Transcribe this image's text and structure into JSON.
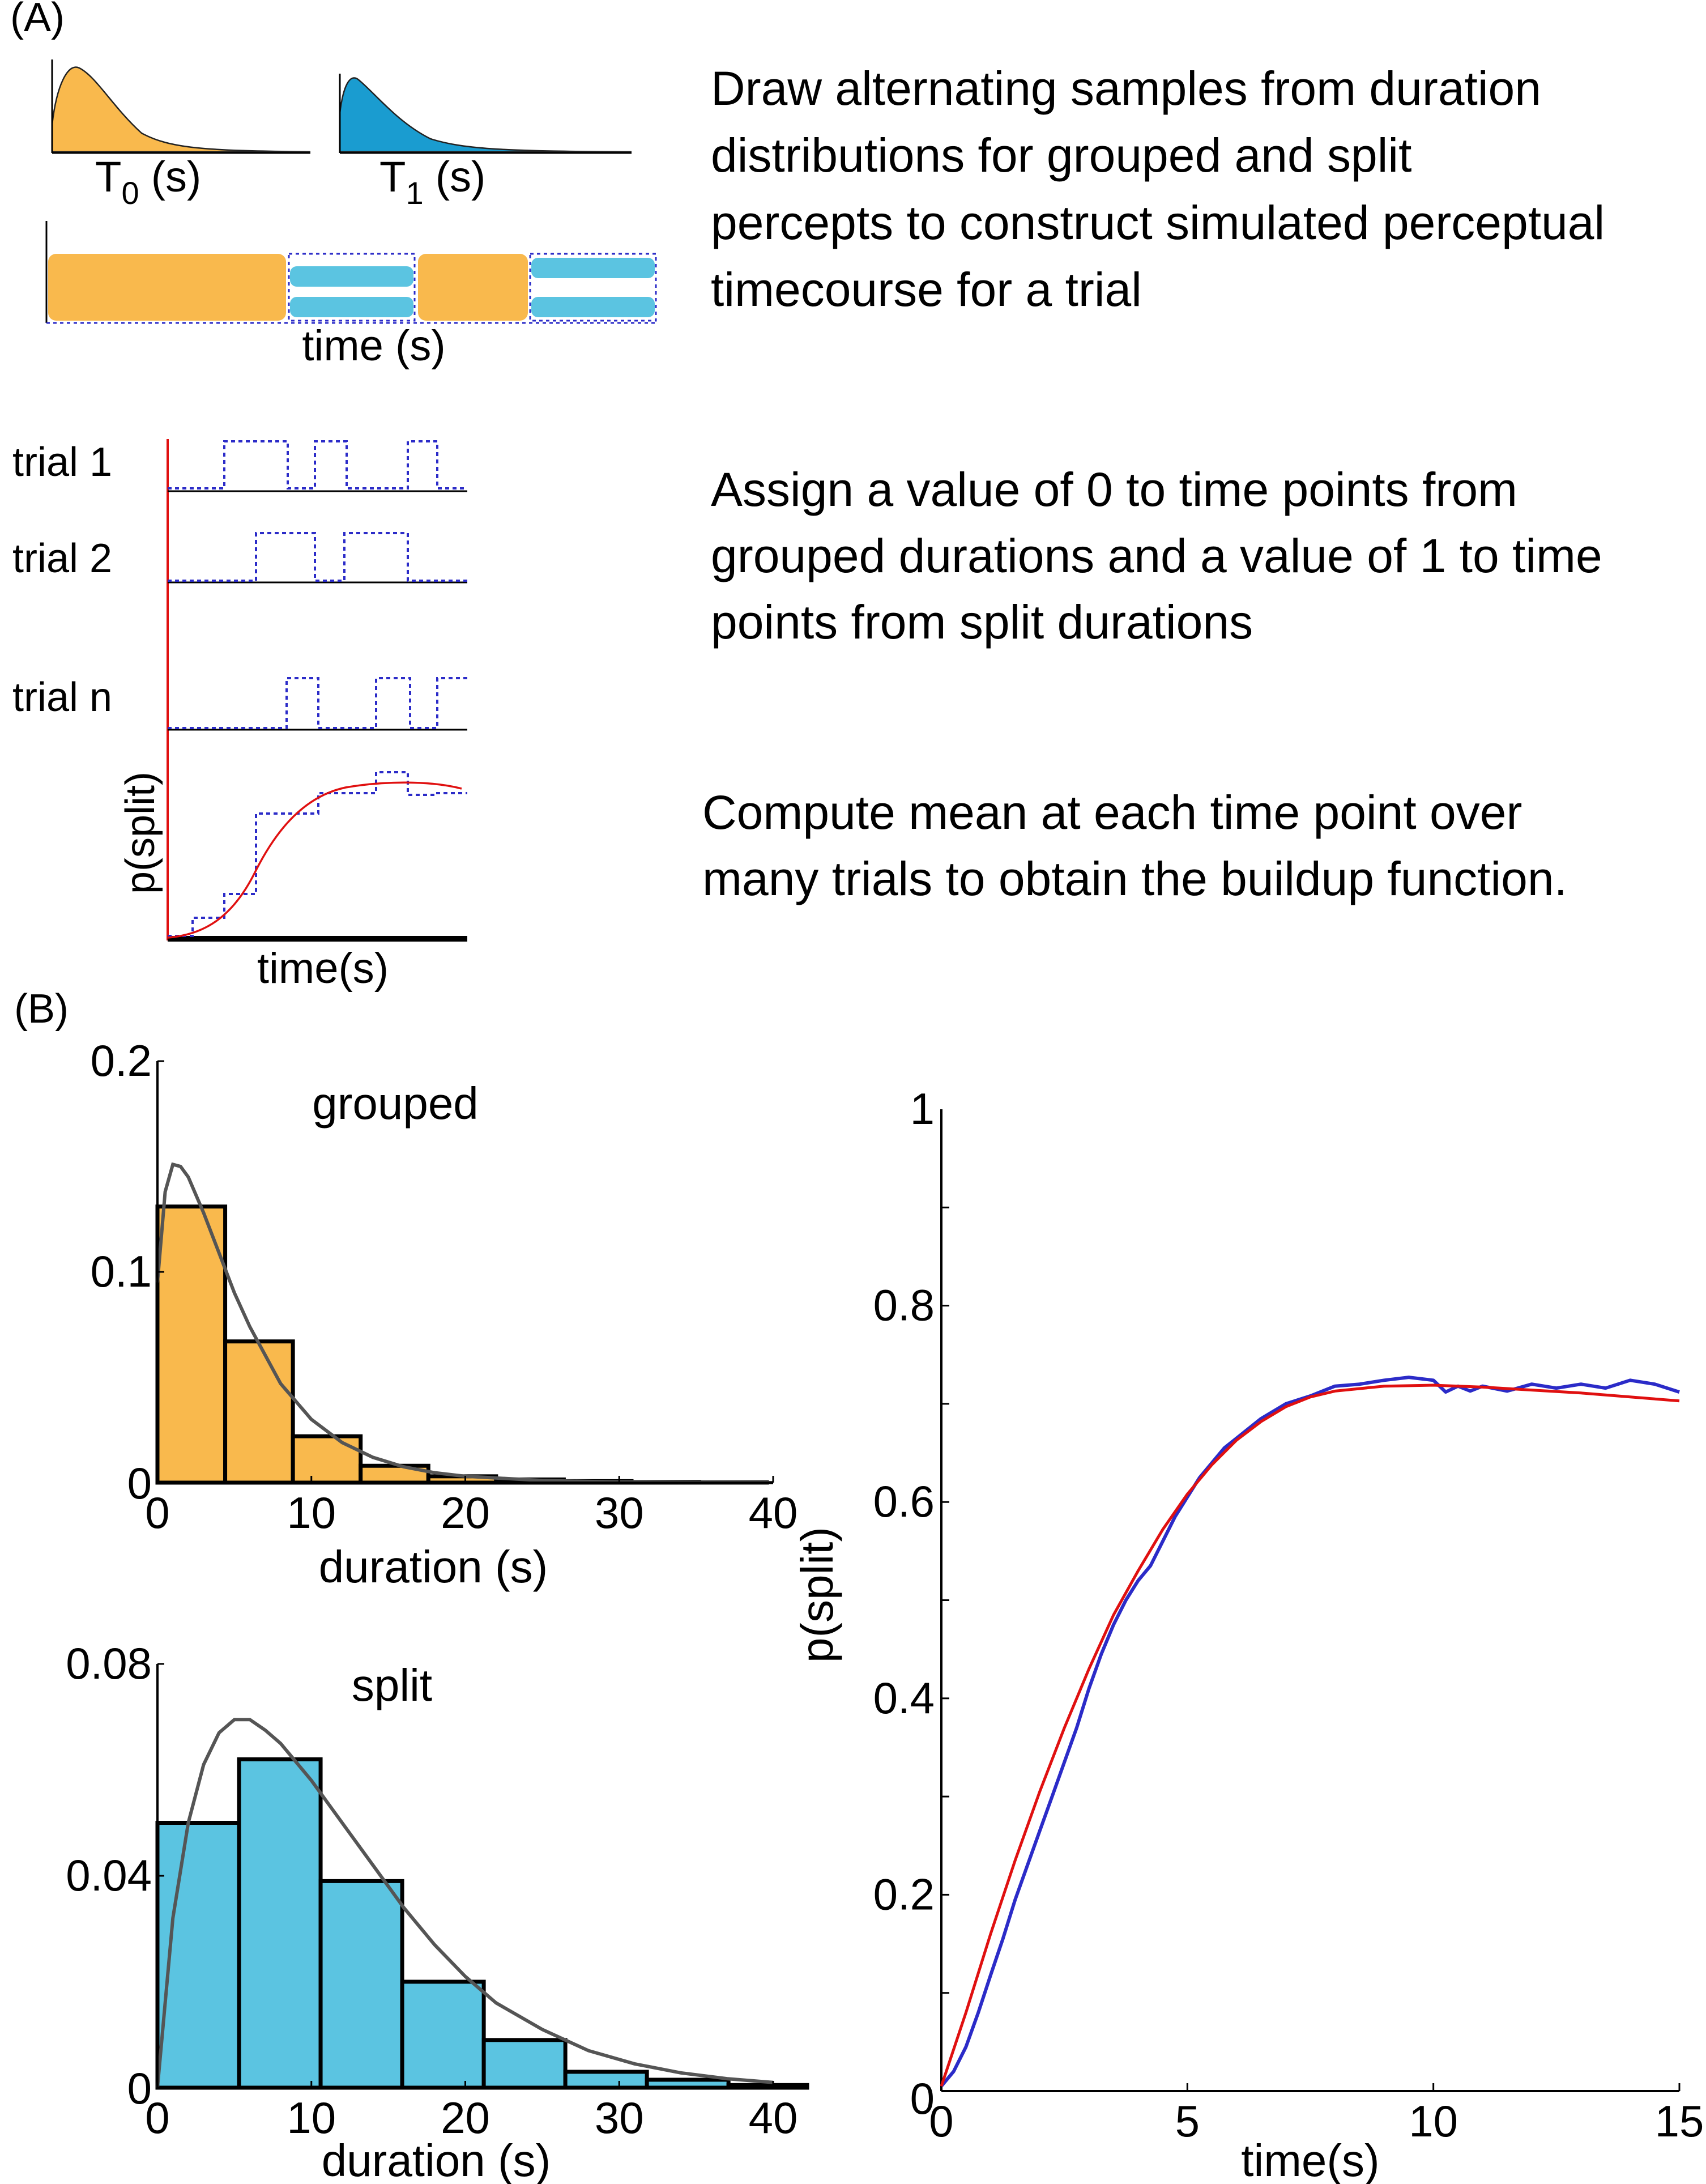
{
  "panel_a": {
    "label": "(A)",
    "dist_labels": {
      "t0_base": "T",
      "t0_sub": "0",
      "t0_unit": " (s)",
      "t1_base": "T",
      "t1_sub": "1",
      "t1_unit": " (s)"
    },
    "timecourse_xlabel": "time (s)",
    "trial_labels": [
      "trial 1",
      "trial 2",
      "trial n"
    ],
    "buildup_ylabel": "p(split)",
    "buildup_xlabel": "time(s)",
    "steps": [
      {
        "lines": [
          "Draw alternating samples from duration",
          "distributions for grouped and split",
          "percepts to construct simulated perceptual",
          "timecourse for a trial"
        ]
      },
      {
        "lines": [
          "Assign a value of 0 to time points from",
          "grouped durations and a value of 1 to time",
          "points from split durations"
        ]
      },
      {
        "lines": [
          "Compute mean at each time point over",
          "many trials to obtain the buildup function."
        ]
      }
    ],
    "colors": {
      "grouped": "#F9B94D",
      "split": "#5BC4E1",
      "split_dark": "#1A9CD0",
      "trace": "#2B2BC8",
      "fit": "#E01010"
    }
  },
  "panel_b": {
    "label": "(B)"
  },
  "chart_data": [
    {
      "type": "bar",
      "title": "grouped",
      "xlabel": "duration (s)",
      "ylabel": "",
      "xlim": [
        0,
        40
      ],
      "ylim": [
        0,
        0.2
      ],
      "xticks": [
        "0",
        "10",
        "20",
        "30",
        "40"
      ],
      "yticks": [
        "0",
        "0.1",
        "0.2"
      ],
      "bin_edges": [
        0,
        4.4,
        8.8,
        13.2,
        17.6,
        22.0,
        26.4,
        30.8,
        35.2,
        39.6
      ],
      "values": [
        0.131,
        0.067,
        0.022,
        0.008,
        0.003,
        0.0015,
        0.0007,
        0.0003,
        0.0001
      ],
      "fit_curve": {
        "x": [
          0,
          0.5,
          1,
          1.5,
          2,
          3,
          4,
          5,
          6,
          8,
          10,
          12,
          14,
          16,
          18,
          20,
          25,
          30,
          35,
          40
        ],
        "y": [
          0.095,
          0.138,
          0.151,
          0.15,
          0.145,
          0.128,
          0.109,
          0.09,
          0.074,
          0.047,
          0.03,
          0.019,
          0.012,
          0.0075,
          0.0047,
          0.003,
          0.001,
          0.0003,
          0.0001,
          0
        ]
      },
      "colors": {
        "bar": "#F9B94D",
        "curve": "#555555"
      }
    },
    {
      "type": "bar",
      "title": "split",
      "xlabel": "duration (s)",
      "ylabel": "",
      "xlim": [
        0,
        40
      ],
      "ylim": [
        0,
        0.08
      ],
      "xticks": [
        "0",
        "10",
        "20",
        "30",
        "40"
      ],
      "yticks": [
        "0",
        "0.04",
        "0.08"
      ],
      "bin_edges": [
        0,
        5.3,
        10.6,
        15.9,
        21.2,
        26.5,
        31.8,
        37.1,
        42.4
      ],
      "values": [
        0.05,
        0.062,
        0.039,
        0.02,
        0.009,
        0.003,
        0.0015,
        0.0005
      ],
      "fit_curve": {
        "x": [
          0,
          1,
          2,
          3,
          4,
          5,
          6,
          7,
          8,
          10,
          12,
          14,
          16,
          18,
          20,
          22,
          25,
          28,
          31,
          34,
          37,
          40
        ],
        "y": [
          0,
          0.032,
          0.05,
          0.061,
          0.067,
          0.0695,
          0.0695,
          0.0675,
          0.065,
          0.058,
          0.05,
          0.042,
          0.034,
          0.027,
          0.021,
          0.016,
          0.011,
          0.007,
          0.0045,
          0.0028,
          0.0017,
          0.001
        ]
      },
      "colors": {
        "bar": "#5BC4E1",
        "curve": "#555555"
      }
    },
    {
      "type": "line",
      "title": "",
      "xlabel": "time(s)",
      "ylabel": "p(split)",
      "xlim": [
        0,
        15
      ],
      "ylim": [
        0,
        1
      ],
      "xticks": [
        "0",
        "5",
        "10",
        "15"
      ],
      "yticks": [
        "0",
        "0.2",
        "0.4",
        "0.6",
        "0.8",
        "1"
      ],
      "series": [
        {
          "color": "#2B2BC8",
          "x": [
            0,
            0.25,
            0.5,
            0.75,
            1,
            1.25,
            1.5,
            1.75,
            2,
            2.25,
            2.5,
            2.75,
            3,
            3.25,
            3.5,
            3.75,
            4,
            4.25,
            4.5,
            4.75,
            5,
            5.25,
            5.5,
            5.75,
            6,
            6.5,
            7,
            7.5,
            8,
            8.5,
            9,
            9.5,
            10,
            10.25,
            10.5,
            10.75,
            11,
            11.5,
            12,
            12.5,
            13,
            13.5,
            14,
            14.5,
            15
          ],
          "y": [
            0.005,
            0.02,
            0.045,
            0.08,
            0.118,
            0.155,
            0.195,
            0.23,
            0.265,
            0.3,
            0.335,
            0.37,
            0.41,
            0.445,
            0.475,
            0.5,
            0.52,
            0.535,
            0.56,
            0.585,
            0.605,
            0.625,
            0.64,
            0.655,
            0.665,
            0.685,
            0.7,
            0.708,
            0.718,
            0.72,
            0.724,
            0.727,
            0.724,
            0.712,
            0.718,
            0.713,
            0.718,
            0.713,
            0.72,
            0.716,
            0.72,
            0.716,
            0.724,
            0.72,
            0.712
          ]
        },
        {
          "color": "#E01010",
          "x": [
            0,
            0.5,
            1,
            1.5,
            2,
            2.5,
            3,
            3.5,
            4,
            4.5,
            5,
            5.5,
            6,
            6.5,
            7,
            7.5,
            8,
            9,
            10,
            11,
            12,
            13,
            14,
            15
          ],
          "y": [
            0.005,
            0.08,
            0.16,
            0.235,
            0.305,
            0.37,
            0.43,
            0.485,
            0.53,
            0.572,
            0.608,
            0.638,
            0.663,
            0.682,
            0.697,
            0.707,
            0.713,
            0.718,
            0.719,
            0.717,
            0.714,
            0.711,
            0.707,
            0.703
          ]
        }
      ]
    }
  ]
}
